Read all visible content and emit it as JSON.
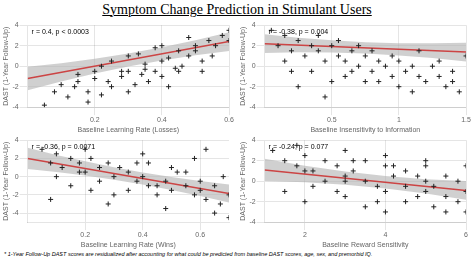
{
  "title": "Symptom Change Prediction in Stimulant Users",
  "footnote": "* 1-Year Follow-Up DAST scores are residualized after accounting for what could be predicted from baseline DAST scores, age, sex, and premorbid IQ.",
  "chart_data": [
    {
      "type": "scatter",
      "xlabel": "Baseline Learning Rate (Losses)",
      "ylabel": "DAST (1-Year Follow-Up)",
      "annotations": [
        "r = 0.4, p < 0.0003"
      ],
      "xlim": [
        0.0,
        0.6
      ],
      "ylim": [
        -4.0,
        4.0
      ],
      "xticks": [
        0.2,
        0.4,
        0.6
      ],
      "yticks": [
        -4,
        -2,
        0,
        2,
        4
      ],
      "grid": true,
      "series": [
        {
          "type": "scatter",
          "color": "#222222",
          "marker": "plus",
          "x": [
            0.05,
            0.08,
            0.1,
            0.12,
            0.14,
            0.15,
            0.18,
            0.2,
            0.22,
            0.24,
            0.25,
            0.28,
            0.3,
            0.3,
            0.32,
            0.34,
            0.35,
            0.36,
            0.38,
            0.4,
            0.4,
            0.42,
            0.44,
            0.45,
            0.46,
            0.48,
            0.5,
            0.5,
            0.52,
            0.54,
            0.55,
            0.56,
            0.58,
            0.6,
            0.6,
            0.25,
            0.3,
            0.35,
            0.4,
            0.45,
            0.18,
            0.22,
            0.28,
            0.33,
            0.52,
            0.15,
            0.42,
            0.48,
            0.38,
            0.2
          ],
          "values": [
            -3.8,
            -2.5,
            -1.8,
            -3.0,
            -2.0,
            -1.5,
            -2.5,
            -1.2,
            -2.8,
            -1.5,
            -2.0,
            -1.0,
            -0.5,
            -2.5,
            -1.8,
            -0.8,
            0.2,
            -1.5,
            -0.5,
            0.5,
            -1.0,
            0.8,
            -0.2,
            1.5,
            0.0,
            1.0,
            1.5,
            2.0,
            0.5,
            2.5,
            1.0,
            2.0,
            3.0,
            2.5,
            3.5,
            0.5,
            1.0,
            -0.3,
            2.0,
            -0.5,
            -3.5,
            0.0,
            -0.5,
            1.2,
            -0.5,
            -0.8,
            -2.0,
            2.8,
            1.8,
            -0.5
          ]
        },
        {
          "type": "line",
          "color": "#cc4444",
          "x": [
            0.0,
            0.6
          ],
          "values": [
            -1.2,
            2.4
          ]
        },
        {
          "type": "band",
          "color": "#b0b0b0",
          "x": [
            0.0,
            0.1,
            0.2,
            0.3,
            0.4,
            0.5,
            0.6
          ],
          "lower": [
            -2.351,
            -1.493,
            -0.722,
            -0.039,
            0.557,
            1.066,
            1.487
          ],
          "upper": [
            -0.049,
            0.293,
            0.722,
            1.239,
            1.843,
            2.534,
            3.313
          ]
        }
      ]
    },
    {
      "type": "scatter",
      "xlabel": "Baseline Insensitivity to Information",
      "ylabel": "DAST (1-Year Follow-Up)",
      "annotations": [
        "r = -0.38, p = 0.004"
      ],
      "xlim": [
        0.0,
        1.5
      ],
      "ylim": [
        -4.0,
        4.0
      ],
      "xticks": [
        0.5,
        1.0,
        1.5
      ],
      "yticks": [
        -4,
        -2,
        0,
        2,
        4
      ],
      "grid": true,
      "series": [
        {
          "type": "scatter",
          "color": "#222222",
          "marker": "plus",
          "x": [
            0.05,
            0.1,
            0.15,
            0.2,
            0.25,
            0.3,
            0.35,
            0.4,
            0.45,
            0.5,
            0.55,
            0.6,
            0.65,
            0.7,
            0.75,
            0.8,
            0.85,
            0.9,
            0.95,
            1.0,
            1.05,
            1.1,
            1.15,
            1.2,
            1.25,
            1.3,
            1.35,
            1.4,
            1.45,
            1.5,
            0.2,
            0.4,
            0.6,
            0.8,
            1.0,
            0.15,
            0.35,
            0.55,
            0.75,
            0.95,
            0.25,
            0.5,
            0.7,
            1.1,
            1.3,
            0.45,
            0.65,
            0.85,
            1.15,
            1.4
          ],
          "values": [
            3.5,
            2.0,
            3.0,
            1.5,
            2.5,
            1.0,
            2.0,
            1.5,
            0.5,
            2.0,
            1.0,
            0.5,
            1.5,
            0.0,
            1.0,
            -0.5,
            0.5,
            0.0,
            -1.0,
            0.5,
            -0.5,
            0.0,
            -1.0,
            -1.5,
            0.0,
            -1.0,
            -2.0,
            -1.5,
            -2.5,
            1.0,
            -0.5,
            3.0,
            -1.0,
            1.5,
            -2.0,
            0.5,
            -0.5,
            2.5,
            -1.5,
            1.0,
            -2.0,
            -1.5,
            2.0,
            -2.5,
            0.5,
            -3.0,
            -0.5,
            -1.5,
            1.5,
            -0.5
          ]
        },
        {
          "type": "line",
          "color": "#cc4444",
          "x": [
            0.0,
            1.5
          ],
          "values": [
            2.2,
            1.375
          ]
        },
        {
          "type": "band",
          "color": "#b0b0b0",
          "x": [
            0.0,
            0.25,
            0.5,
            0.75,
            1.0,
            1.25,
            1.5
          ],
          "lower": [
            1.295,
            1.35,
            1.328,
            1.229,
            1.051,
            0.796,
            0.464
          ],
          "upper": [
            3.105,
            2.775,
            2.522,
            2.346,
            2.249,
            2.229,
            2.286
          ]
        }
      ]
    },
    {
      "type": "scatter",
      "xlabel": "Baseline Learning Rate (Wins)",
      "ylabel": "DAST (1-Year Follow-Up)",
      "annotations": [
        "r = -0.36, p = 0.0071"
      ],
      "xlim": [
        0.0,
        0.7
      ],
      "ylim": [
        -5.0,
        4.0
      ],
      "xticks": [
        0.2,
        0.4,
        0.6
      ],
      "yticks": [
        -4,
        -2,
        0,
        2,
        4
      ],
      "grid": true,
      "series": [
        {
          "type": "scatter",
          "color": "#222222",
          "marker": "plus",
          "x": [
            0.05,
            0.08,
            0.1,
            0.12,
            0.15,
            0.18,
            0.2,
            0.22,
            0.25,
            0.28,
            0.3,
            0.32,
            0.35,
            0.38,
            0.4,
            0.42,
            0.45,
            0.48,
            0.5,
            0.52,
            0.55,
            0.58,
            0.6,
            0.62,
            0.65,
            0.67,
            0.7,
            0.15,
            0.25,
            0.35,
            0.45,
            0.55,
            0.6,
            0.1,
            0.2,
            0.3,
            0.4,
            0.5,
            0.65,
            0.7,
            0.08,
            0.18,
            0.28,
            0.38,
            0.48,
            0.58,
            0.68,
            0.22,
            0.42,
            0.62
          ],
          "values": [
            3.0,
            1.5,
            2.5,
            1.0,
            2.0,
            1.5,
            0.5,
            2.0,
            1.0,
            1.5,
            0.0,
            1.0,
            0.5,
            -0.5,
            0.0,
            1.5,
            -1.0,
            -0.5,
            -1.5,
            0.5,
            -1.0,
            -2.0,
            -1.5,
            -2.5,
            -1.0,
            -3.0,
            -2.0,
            -1.0,
            -0.5,
            -1.5,
            -2.0,
            0.5,
            -0.5,
            0.0,
            3.0,
            -2.0,
            2.5,
            1.0,
            -4.0,
            -4.5,
            -2.5,
            0.5,
            -3.0,
            1.5,
            -3.5,
            2.0,
            0.0,
            -1.5,
            -1.0,
            3.0
          ]
        },
        {
          "type": "line",
          "color": "#cc4444",
          "x": [
            0.0,
            0.7
          ],
          "values": [
            2.0,
            -1.85
          ]
        },
        {
          "type": "band",
          "color": "#b0b0b0",
          "x": [
            0.0,
            0.1,
            0.2,
            0.3,
            0.4,
            0.5,
            0.6,
            0.7
          ],
          "lower": [
            0.836,
            0.512,
            0.121,
            -0.338,
            -0.864,
            -1.458,
            -2.12,
            -2.85
          ],
          "upper": [
            3.164,
            2.388,
            1.679,
            1.038,
            0.464,
            -0.042,
            -0.48,
            -0.85
          ]
        }
      ]
    },
    {
      "type": "scatter",
      "xlabel": "Baseline Reward Sensitivity",
      "ylabel": "DAST (1-Year Follow-Up)",
      "annotations": [
        "r = -0.24, p = 0.077"
      ],
      "xlim": [
        1.0,
        6.0
      ],
      "ylim": [
        -4.0,
        4.0
      ],
      "xticks": [
        2,
        4,
        6
      ],
      "yticks": [
        -4,
        -2,
        0,
        2,
        4
      ],
      "grid": true,
      "series": [
        {
          "type": "scatter",
          "color": "#222222",
          "marker": "plus",
          "x": [
            1.2,
            1.5,
            1.8,
            2.0,
            2.2,
            2.5,
            2.8,
            3.0,
            3.0,
            3.2,
            3.5,
            3.5,
            3.8,
            4.0,
            4.0,
            4.2,
            4.5,
            4.5,
            4.8,
            5.0,
            5.0,
            5.2,
            5.5,
            5.5,
            5.8,
            6.0,
            1.5,
            2.0,
            2.5,
            3.0,
            3.5,
            4.0,
            4.5,
            5.0,
            5.5,
            1.8,
            2.2,
            2.8,
            3.2,
            3.8,
            4.2,
            4.8,
            5.2,
            5.8,
            6.0,
            2.0,
            3.0,
            4.0,
            5.0,
            6.0
          ],
          "values": [
            3.0,
            2.0,
            1.5,
            2.5,
            1.0,
            2.0,
            1.5,
            0.5,
            3.0,
            1.0,
            0.0,
            2.0,
            -0.5,
            1.5,
            -1.0,
            0.5,
            -0.5,
            1.0,
            -1.5,
            0.0,
            -1.0,
            -0.5,
            -1.5,
            0.5,
            -2.0,
            -1.0,
            -1.0,
            -2.0,
            0.0,
            -1.5,
            -2.5,
            2.5,
            -2.0,
            1.5,
            -3.0,
            3.5,
            -0.5,
            -1.0,
            2.0,
            -2.0,
            1.5,
            0.5,
            -2.5,
            0.0,
            -3.0,
            1.0,
            0.0,
            -3.0,
            2.0,
            1.5
          ]
        },
        {
          "type": "line",
          "color": "#cc4444",
          "x": [
            1.0,
            6.0
          ],
          "values": [
            1.1,
            -0.9
          ]
        },
        {
          "type": "band",
          "color": "#b0b0b0",
          "x": [
            1.0,
            2.0,
            3.0,
            4.0,
            5.0,
            6.0
          ],
          "lower": [
            0.017,
            -0.104,
            -0.348,
            -0.713,
            -1.2,
            -1.809
          ],
          "upper": [
            2.183,
            1.504,
            0.948,
            0.513,
            0.2,
            0.009
          ]
        }
      ]
    }
  ]
}
